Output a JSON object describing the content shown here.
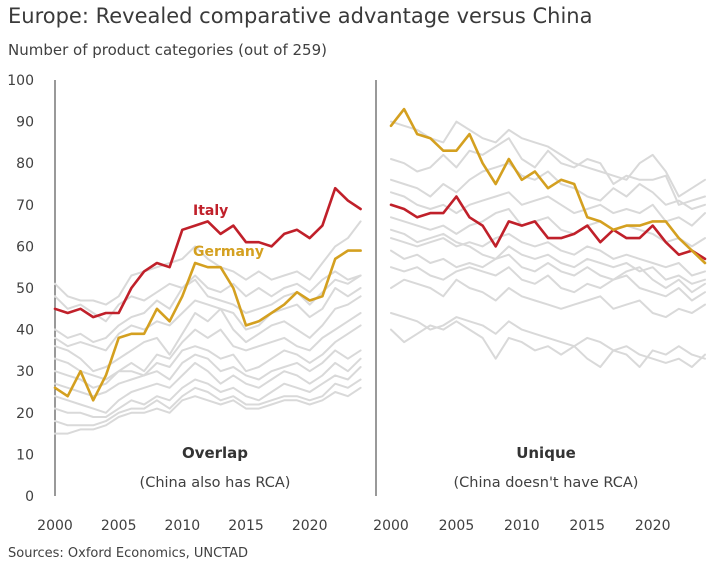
{
  "title": "Europe: Revealed comparative advantage versus China",
  "subtitle": "Number of product categories (out of 259)",
  "source": "Sources: Oxford Economics, UNCTAD",
  "chart_data": {
    "type": "line",
    "ylim": [
      0,
      100
    ],
    "yticks": [
      0,
      10,
      20,
      30,
      40,
      50,
      60,
      70,
      80,
      90,
      100
    ],
    "xticks": [
      2000,
      2005,
      2010,
      2015,
      2020
    ],
    "x": [
      2000,
      2001,
      2002,
      2003,
      2004,
      2005,
      2006,
      2007,
      2008,
      2009,
      2010,
      2011,
      2012,
      2013,
      2014,
      2015,
      2016,
      2017,
      2018,
      2019,
      2020,
      2021,
      2022,
      2023,
      2024
    ],
    "colors": {
      "Italy": "#c0202a",
      "Germany": "#d4a020",
      "Other": "#d9d9d9",
      "axis": "#333333"
    },
    "panels": [
      {
        "label": "Overlap",
        "sublabel": "(China also has RCA)",
        "series": [
          {
            "name": "Italy",
            "label": "Italy",
            "values": [
              45,
              44,
              45,
              43,
              44,
              44,
              50,
              54,
              56,
              55,
              64,
              65,
              66,
              63,
              65,
              61,
              61,
              60,
              63,
              64,
              62,
              65,
              74,
              71,
              69
            ]
          },
          {
            "name": "Germany",
            "label": "Germany",
            "values": [
              26,
              24,
              30,
              23,
              29,
              38,
              39,
              39,
              45,
              42,
              48,
              56,
              55,
              55,
              50,
              41,
              42,
              44,
              46,
              49,
              47,
              48,
              57,
              59,
              59
            ]
          },
          {
            "name": "Other",
            "values": [
              51,
              48,
              47,
              47,
              46,
              48,
              53,
              54,
              55,
              56,
              57,
              60,
              57,
              55,
              54,
              52,
              54,
              52,
              53,
              54,
              52,
              56,
              60,
              62,
              66
            ]
          },
          {
            "name": "Other",
            "values": [
              48,
              45,
              46,
              44,
              42,
              46,
              48,
              47,
              49,
              51,
              50,
              53,
              50,
              49,
              51,
              48,
              50,
              48,
              50,
              51,
              49,
              52,
              54,
              52,
              53
            ]
          },
          {
            "name": "Other",
            "values": [
              38,
              36,
              37,
              36,
              35,
              39,
              41,
              40,
              42,
              41,
              44,
              47,
              46,
              45,
              44,
              40,
              41,
              44,
              45,
              46,
              43,
              45,
              50,
              48,
              50
            ]
          },
          {
            "name": "Other",
            "values": [
              36,
              35,
              33,
              30,
              31,
              33,
              35,
              37,
              38,
              34,
              39,
              44,
              42,
              45,
              40,
              37,
              39,
              41,
              42,
              40,
              38,
              41,
              45,
              46,
              48
            ]
          },
          {
            "name": "Other",
            "values": [
              33,
              32,
              30,
              29,
              28,
              30,
              32,
              30,
              34,
              33,
              37,
              40,
              38,
              40,
              36,
              35,
              36,
              37,
              38,
              36,
              35,
              38,
              40,
              42,
              44
            ]
          },
          {
            "name": "Other",
            "values": [
              30,
              29,
              28,
              26,
              27,
              30,
              30,
              29,
              32,
              31,
              35,
              36,
              35,
              33,
              34,
              30,
              31,
              33,
              35,
              34,
              32,
              34,
              37,
              39,
              41
            ]
          },
          {
            "name": "Other",
            "values": [
              27,
              26,
              25,
              24,
              25,
              27,
              28,
              29,
              30,
              28,
              32,
              34,
              33,
              30,
              31,
              29,
              28,
              30,
              31,
              32,
              30,
              32,
              35,
              33,
              35
            ]
          },
          {
            "name": "Other",
            "values": [
              24,
              23,
              22,
              21,
              20,
              23,
              25,
              26,
              27,
              26,
              29,
              32,
              30,
              27,
              29,
              27,
              26,
              28,
              30,
              29,
              27,
              29,
              32,
              30,
              33
            ]
          },
          {
            "name": "Other",
            "values": [
              21,
              20,
              20,
              19,
              19,
              21,
              23,
              22,
              24,
              23,
              26,
              28,
              27,
              25,
              26,
              24,
              23,
              25,
              27,
              26,
              25,
              27,
              29,
              28,
              31
            ]
          },
          {
            "name": "Other",
            "values": [
              18,
              17,
              17,
              17,
              18,
              20,
              21,
              21,
              23,
              21,
              24,
              26,
              25,
              23,
              24,
              22,
              22,
              23,
              24,
              24,
              23,
              24,
              27,
              26,
              28
            ]
          },
          {
            "name": "Other",
            "values": [
              15,
              15,
              16,
              16,
              17,
              19,
              20,
              20,
              21,
              20,
              23,
              24,
              23,
              22,
              23,
              21,
              21,
              22,
              23,
              23,
              22,
              23,
              25,
              24,
              26
            ]
          },
          {
            "name": "Other",
            "values": [
              40,
              38,
              39,
              37,
              38,
              41,
              43,
              44,
              47,
              45,
              50,
              52,
              48,
              47,
              46,
              44,
              45,
              46,
              48,
              49,
              46,
              49,
              52,
              51,
              53
            ]
          }
        ]
      },
      {
        "label": "Unique",
        "sublabel": "(China doesn't have RCA)",
        "series": [
          {
            "name": "Italy",
            "values": [
              70,
              69,
              67,
              68,
              68,
              72,
              67,
              65,
              60,
              66,
              65,
              66,
              62,
              62,
              63,
              65,
              61,
              64,
              62,
              62,
              65,
              61,
              58,
              59,
              57
            ]
          },
          {
            "name": "Germany",
            "values": [
              89,
              93,
              87,
              86,
              83,
              83,
              87,
              80,
              75,
              81,
              76,
              78,
              74,
              76,
              75,
              67,
              66,
              64,
              65,
              65,
              66,
              66,
              62,
              59,
              56
            ]
          },
          {
            "name": "Other",
            "values": [
              90,
              89,
              88,
              86,
              85,
              90,
              88,
              86,
              85,
              88,
              86,
              85,
              84,
              82,
              80,
              79,
              78,
              77,
              76,
              80,
              82,
              78,
              72,
              74,
              76
            ]
          },
          {
            "name": "Other",
            "values": [
              81,
              80,
              78,
              79,
              82,
              79,
              83,
              82,
              84,
              86,
              81,
              79,
              83,
              80,
              79,
              81,
              80,
              75,
              77,
              76,
              76,
              77,
              70,
              71,
              72
            ]
          },
          {
            "name": "Other",
            "values": [
              76,
              75,
              74,
              72,
              75,
              73,
              76,
              78,
              79,
              80,
              77,
              76,
              78,
              75,
              74,
              72,
              71,
              74,
              72,
              75,
              73,
              70,
              71,
              69,
              70
            ]
          },
          {
            "name": "Other",
            "values": [
              73,
              72,
              70,
              69,
              70,
              68,
              70,
              71,
              72,
              73,
              70,
              71,
              72,
              70,
              68,
              69,
              70,
              68,
              69,
              68,
              70,
              66,
              67,
              65,
              68
            ]
          },
          {
            "name": "Other",
            "values": [
              67,
              66,
              65,
              64,
              65,
              63,
              65,
              66,
              68,
              69,
              65,
              66,
              67,
              64,
              63,
              65,
              66,
              64,
              65,
              64,
              63,
              61,
              62,
              60,
              62
            ]
          },
          {
            "name": "Other",
            "values": [
              62,
              61,
              60,
              61,
              62,
              60,
              61,
              60,
              62,
              63,
              61,
              60,
              61,
              59,
              58,
              60,
              59,
              57,
              58,
              57,
              56,
              55,
              56,
              53,
              54
            ]
          },
          {
            "name": "Other",
            "values": [
              59,
              57,
              58,
              56,
              57,
              55,
              56,
              55,
              57,
              58,
              55,
              54,
              56,
              54,
              53,
              55,
              53,
              52,
              54,
              55,
              52,
              50,
              52,
              49,
              51
            ]
          },
          {
            "name": "Other",
            "values": [
              55,
              54,
              55,
              53,
              52,
              54,
              55,
              54,
              53,
              55,
              52,
              51,
              53,
              50,
              49,
              51,
              50,
              52,
              53,
              50,
              49,
              48,
              50,
              47,
              49
            ]
          },
          {
            "name": "Other",
            "values": [
              50,
              52,
              51,
              50,
              48,
              52,
              50,
              49,
              47,
              50,
              48,
              47,
              46,
              45,
              46,
              47,
              48,
              45,
              46,
              47,
              44,
              43,
              45,
              44,
              46
            ]
          },
          {
            "name": "Other",
            "values": [
              44,
              43,
              42,
              40,
              41,
              43,
              42,
              41,
              39,
              42,
              40,
              39,
              38,
              37,
              36,
              38,
              37,
              35,
              36,
              34,
              33,
              32,
              33,
              31,
              34
            ]
          },
          {
            "name": "Other",
            "values": [
              40,
              37,
              39,
              41,
              40,
              42,
              40,
              38,
              33,
              38,
              37,
              35,
              36,
              34,
              36,
              33,
              31,
              35,
              34,
              31,
              35,
              34,
              36,
              34,
              33
            ]
          },
          {
            "name": "Other",
            "values": [
              64,
              63,
              61,
              62,
              63,
              61,
              60,
              58,
              57,
              60,
              58,
              57,
              58,
              56,
              55,
              57,
              56,
              55,
              56,
              54,
              55,
              52,
              53,
              51,
              52
            ]
          }
        ]
      }
    ]
  }
}
